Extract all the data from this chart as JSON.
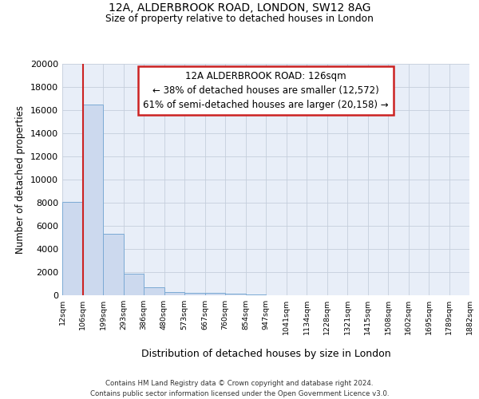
{
  "title_line1": "12A, ALDERBROOK ROAD, LONDON, SW12 8AG",
  "title_line2": "Size of property relative to detached houses in London",
  "xlabel": "Distribution of detached houses by size in London",
  "ylabel": "Number of detached properties",
  "bin_labels": [
    "12sqm",
    "106sqm",
    "199sqm",
    "293sqm",
    "386sqm",
    "480sqm",
    "573sqm",
    "667sqm",
    "760sqm",
    "854sqm",
    "947sqm",
    "1041sqm",
    "1134sqm",
    "1228sqm",
    "1321sqm",
    "1415sqm",
    "1508sqm",
    "1602sqm",
    "1695sqm",
    "1789sqm",
    "1882sqm"
  ],
  "bar_heights": [
    8100,
    16500,
    5300,
    1850,
    700,
    300,
    200,
    200,
    150,
    100,
    0,
    0,
    0,
    0,
    0,
    0,
    0,
    0,
    0,
    0
  ],
  "bar_color": "#ccd9ee",
  "bar_edge_color": "#7baad4",
  "ylim": [
    0,
    20000
  ],
  "yticks": [
    0,
    2000,
    4000,
    6000,
    8000,
    10000,
    12000,
    14000,
    16000,
    18000,
    20000
  ],
  "property_line_color": "#cc2222",
  "annotation_title": "12A ALDERBROOK ROAD: 126sqm",
  "annotation_line1": "← 38% of detached houses are smaller (12,572)",
  "annotation_line2": "61% of semi-detached houses are larger (20,158) →",
  "annotation_box_color": "#ffffff",
  "annotation_border_color": "#cc2222",
  "grid_color": "#c5cedc",
  "background_color": "#e8eef8",
  "footer_line1": "Contains HM Land Registry data © Crown copyright and database right 2024.",
  "footer_line2": "Contains public sector information licensed under the Open Government Licence v3.0."
}
